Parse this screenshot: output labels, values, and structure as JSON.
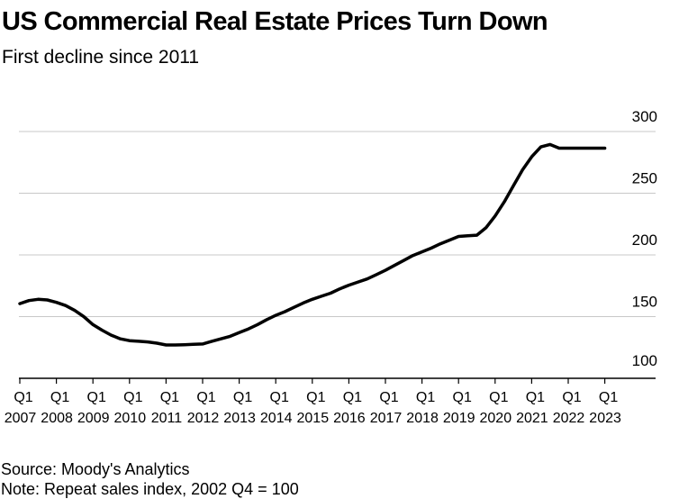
{
  "header": {
    "title": "US Commercial Real Estate Prices Turn Down",
    "subtitle": "First decline since 2011"
  },
  "footer": {
    "source": "Source: Moody's Analytics",
    "note": "Note: Repeat sales index, 2002 Q4 = 100"
  },
  "colors": {
    "line": "#000000",
    "grid": "#c8c8c8",
    "axis": "#000000"
  },
  "chart_data": {
    "type": "line",
    "title": "US Commercial Real Estate Prices Turn Down",
    "subtitle": "First decline since 2011",
    "xlabel": "",
    "ylabel": "",
    "ylim": [
      100,
      300
    ],
    "yticks": [
      100,
      150,
      200,
      250,
      300
    ],
    "grid": true,
    "y_axis_side": "right",
    "x_ticks": [
      {
        "quarter": "Q1",
        "year": "2007"
      },
      {
        "quarter": "Q1",
        "year": "2008"
      },
      {
        "quarter": "Q1",
        "year": "2009"
      },
      {
        "quarter": "Q1",
        "year": "2010"
      },
      {
        "quarter": "Q1",
        "year": "2011"
      },
      {
        "quarter": "Q1",
        "year": "2012"
      },
      {
        "quarter": "Q1",
        "year": "2013"
      },
      {
        "quarter": "Q1",
        "year": "2014"
      },
      {
        "quarter": "Q1",
        "year": "2015"
      },
      {
        "quarter": "Q1",
        "year": "2016"
      },
      {
        "quarter": "Q1",
        "year": "2017"
      },
      {
        "quarter": "Q1",
        "year": "2018"
      },
      {
        "quarter": "Q1",
        "year": "2019"
      },
      {
        "quarter": "Q1",
        "year": "2020"
      },
      {
        "quarter": "Q1",
        "year": "2021"
      },
      {
        "quarter": "Q1",
        "year": "2022"
      },
      {
        "quarter": "Q1",
        "year": "2023"
      }
    ],
    "series": [
      {
        "name": "Repeat sales index",
        "x": [
          2007.0,
          2007.25,
          2007.5,
          2007.75,
          2008.0,
          2008.25,
          2008.5,
          2008.75,
          2009.0,
          2009.25,
          2009.5,
          2009.75,
          2010.0,
          2010.25,
          2010.5,
          2010.75,
          2011.0,
          2011.25,
          2011.5,
          2011.75,
          2012.0,
          2012.25,
          2012.5,
          2012.75,
          2013.0,
          2013.25,
          2013.5,
          2013.75,
          2014.0,
          2014.25,
          2014.5,
          2014.75,
          2015.0,
          2015.25,
          2015.5,
          2015.75,
          2016.0,
          2016.25,
          2016.5,
          2016.75,
          2017.0,
          2017.25,
          2017.5,
          2017.75,
          2018.0,
          2018.25,
          2018.5,
          2018.75,
          2019.0,
          2019.25,
          2019.5,
          2019.75,
          2020.0,
          2020.25,
          2020.5,
          2020.75,
          2021.0,
          2021.25,
          2021.5,
          2021.75,
          2022.0,
          2022.25,
          2022.5,
          2022.75,
          2023.0
        ],
        "values": [
          160.5,
          163,
          164,
          163.5,
          161.5,
          159,
          155,
          150,
          143.5,
          139,
          135,
          132,
          130.5,
          130,
          129.5,
          128.5,
          127,
          127,
          127.2,
          127.5,
          127.8,
          130,
          132,
          134,
          137,
          140,
          143.5,
          147.5,
          151,
          154,
          157.5,
          161,
          164,
          166.5,
          169,
          172.5,
          175.5,
          178,
          180.5,
          184,
          187.5,
          191.5,
          195.5,
          199.5,
          202.5,
          205.5,
          209,
          212,
          215,
          215.5,
          216,
          222,
          231.5,
          243,
          256,
          269,
          279.5,
          287.5,
          289.5,
          286.5,
          286.5,
          286.5,
          286.5,
          286.5,
          286.5
        ]
      }
    ]
  }
}
